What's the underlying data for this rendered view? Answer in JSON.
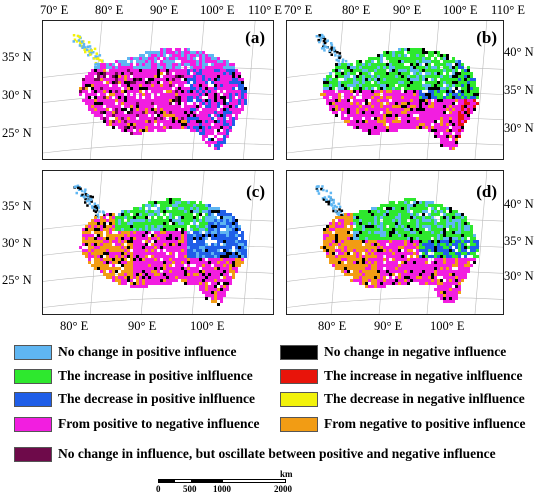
{
  "top_lon_ticks": [
    "70° E",
    "80° E",
    "90° E",
    "100° E",
    "110° E"
  ],
  "bottom_lon_ticks": [
    "80° E",
    "90° E",
    "100° E"
  ],
  "left_lat_ticks_ac": [
    "35° N",
    "30° N",
    "25° N"
  ],
  "right_lat_ticks_bd": [
    "40° N",
    "35° N",
    "30° N"
  ],
  "panels": [
    {
      "id": "a",
      "label": "(a)"
    },
    {
      "id": "b",
      "label": "(b)"
    },
    {
      "id": "c",
      "label": "(c)"
    },
    {
      "id": "d",
      "label": "(d)"
    }
  ],
  "legend": [
    {
      "color": "#5fb6f2",
      "label": "No change in positive influence"
    },
    {
      "color": "#000000",
      "label": "No change in negative influence"
    },
    {
      "color": "#2ee82e",
      "label": "The increase in positive inlfluence"
    },
    {
      "color": "#e8140a",
      "label": "The increase in negative inlfluence"
    },
    {
      "color": "#1f5ee8",
      "label": "The decrease in positive inlfluence"
    },
    {
      "color": "#f2f20a",
      "label": "The decrease in negative inlfluence"
    },
    {
      "color": "#f21ee0",
      "label": "From positive to negative influence"
    },
    {
      "color": "#f29c14",
      "label": "From negative to positive influence"
    },
    {
      "color": "#6e0a4a",
      "label": "No change in influence, but oscillate between positive and negative influence"
    }
  ],
  "scale_bar": {
    "unit": "km",
    "labels": [
      "0",
      "500",
      "1000",
      "2000"
    ]
  }
}
